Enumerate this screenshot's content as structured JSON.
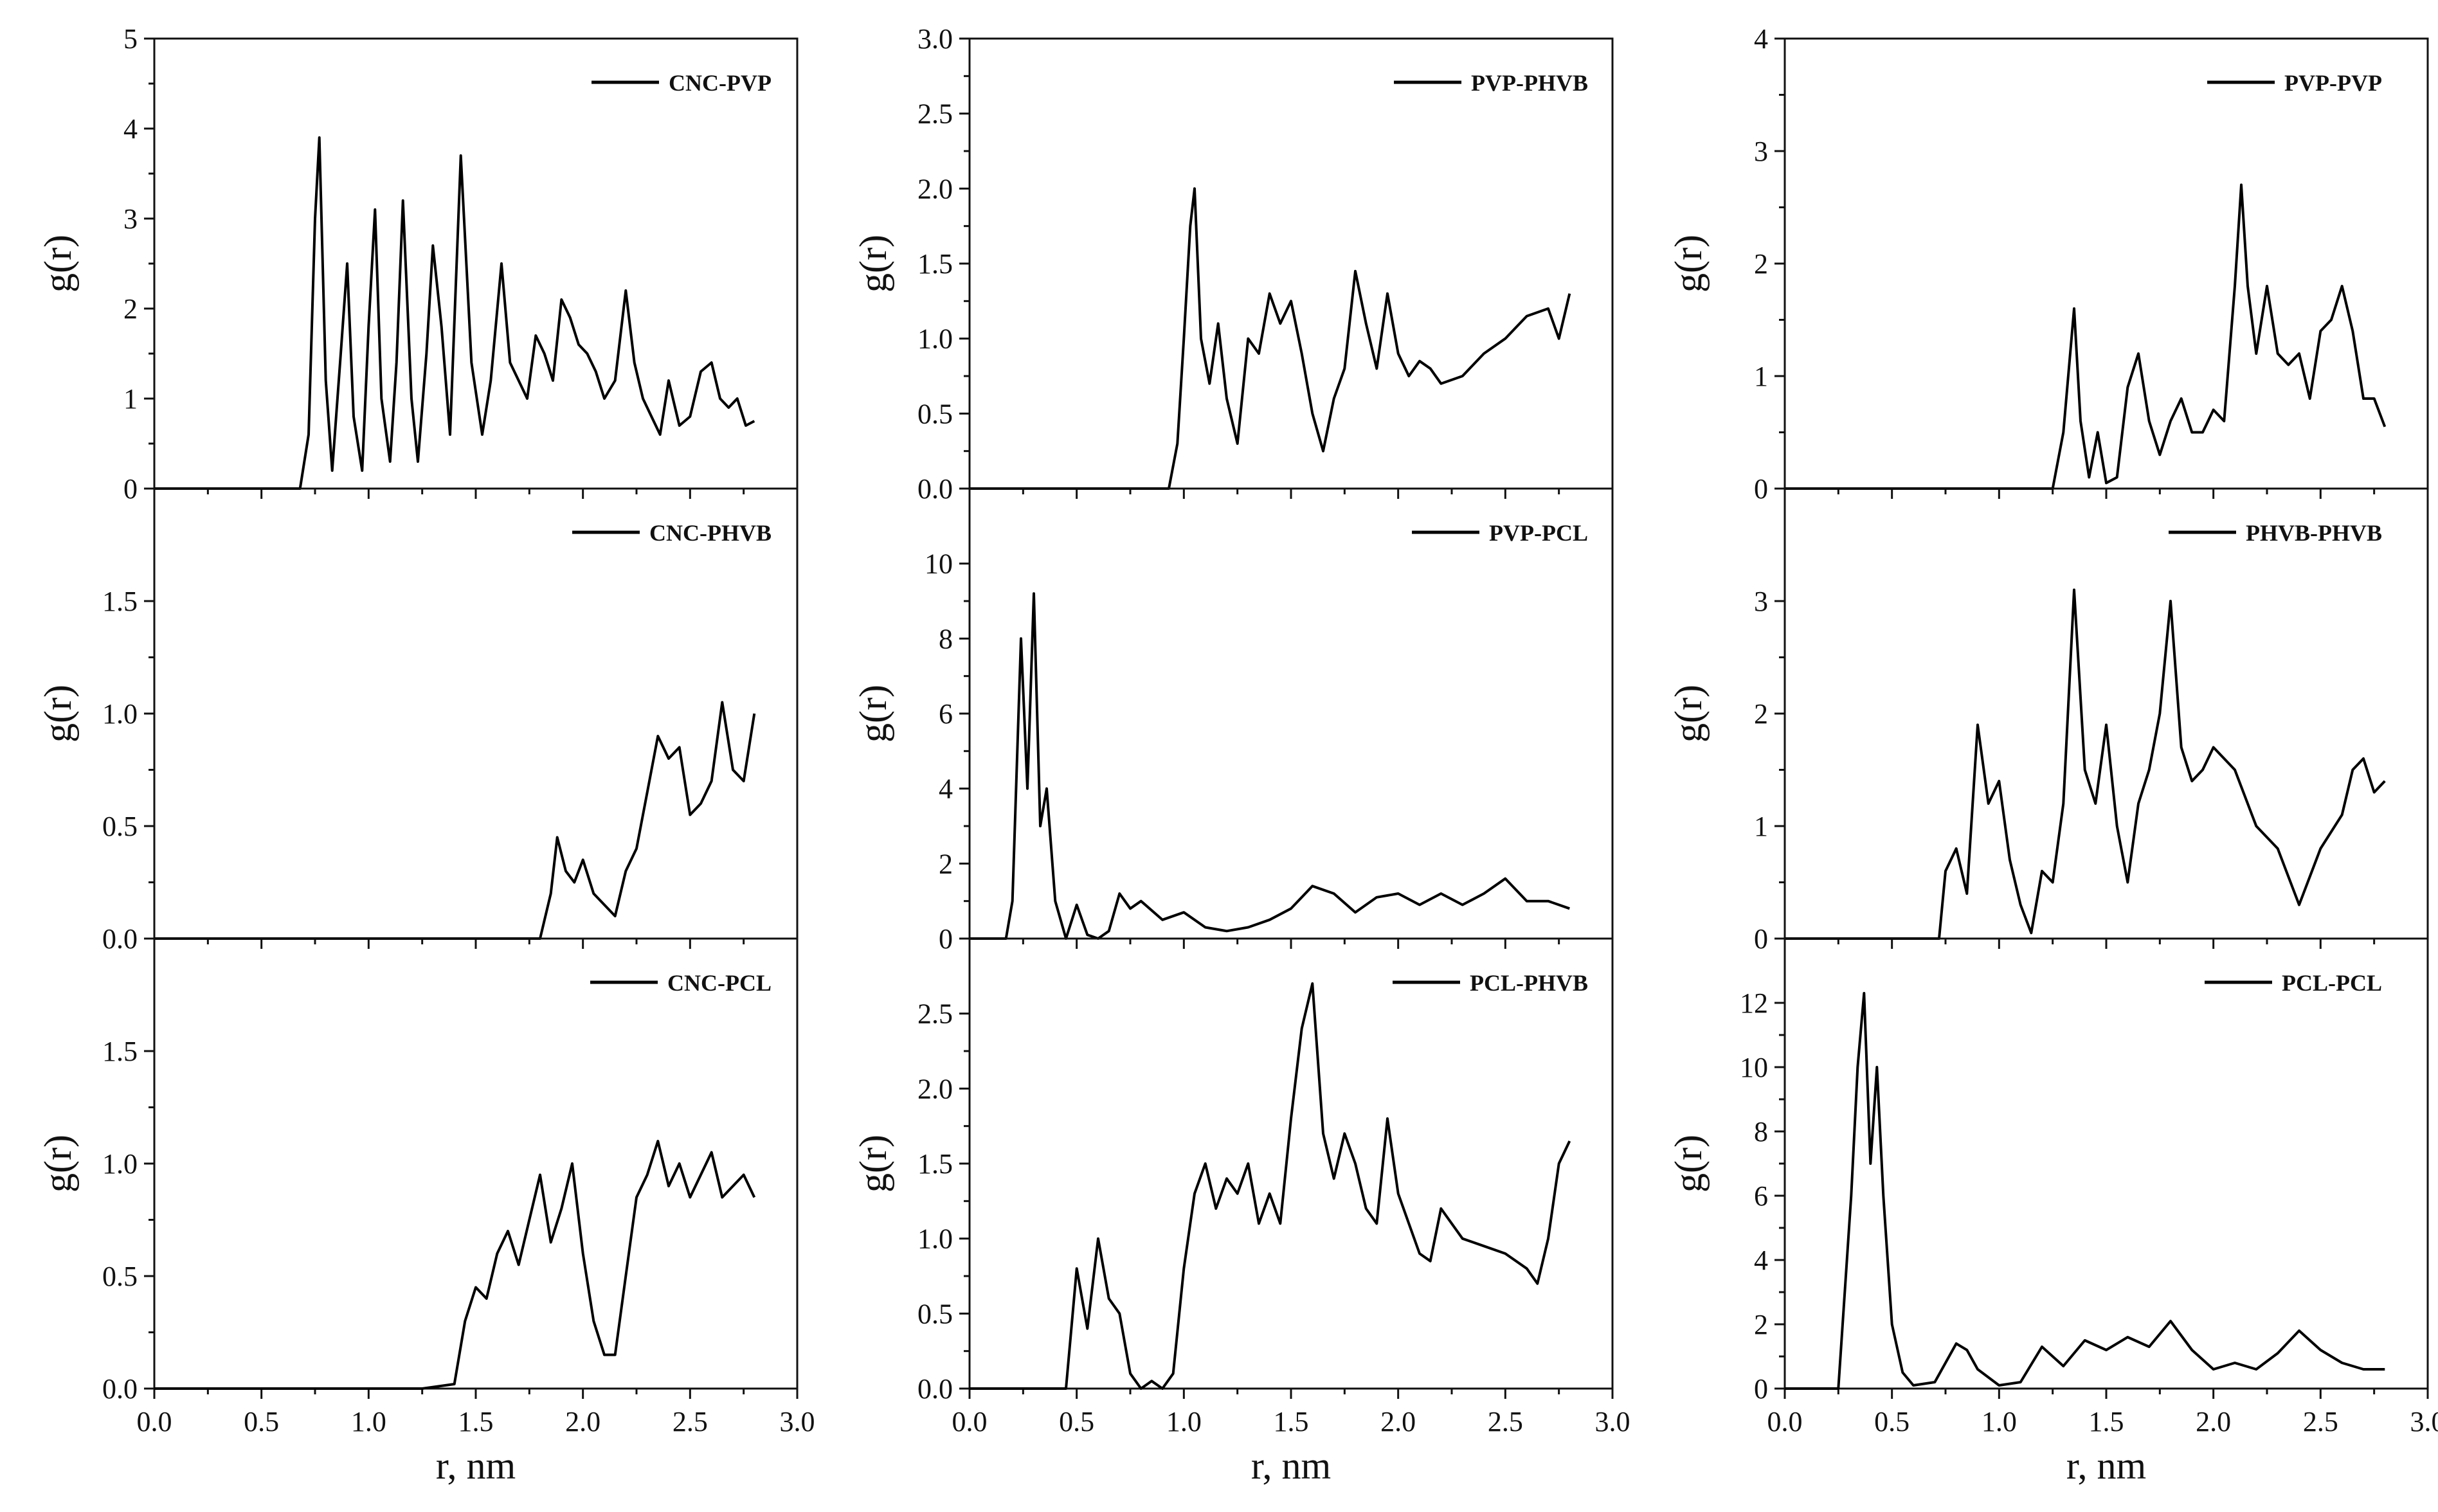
{
  "figure": {
    "xlabel": "r, nm",
    "ylabel": "g(r)",
    "x_ticks": [
      "0.0",
      "0.5",
      "1.0",
      "1.5",
      "2.0",
      "2.5",
      "3.0"
    ]
  },
  "chart_data": [
    {
      "type": "line",
      "legend": "CNC-PVP",
      "column": 0,
      "row": 0,
      "xlim": [
        0,
        3
      ],
      "ylim": [
        0,
        5
      ],
      "y_ticks": [
        "0",
        "1",
        "2",
        "3",
        "4",
        "5"
      ],
      "x": [
        0.0,
        0.68,
        0.72,
        0.75,
        0.77,
        0.8,
        0.83,
        0.87,
        0.9,
        0.93,
        0.97,
        1.0,
        1.03,
        1.06,
        1.1,
        1.13,
        1.16,
        1.2,
        1.23,
        1.27,
        1.3,
        1.34,
        1.38,
        1.43,
        1.48,
        1.53,
        1.57,
        1.62,
        1.66,
        1.7,
        1.74,
        1.78,
        1.82,
        1.86,
        1.9,
        1.94,
        1.98,
        2.02,
        2.06,
        2.1,
        2.15,
        2.2,
        2.24,
        2.28,
        2.32,
        2.36,
        2.4,
        2.45,
        2.5,
        2.55,
        2.6,
        2.64,
        2.68,
        2.72,
        2.76,
        2.8
      ],
      "values": [
        0.0,
        0.0,
        0.6,
        3.0,
        3.9,
        1.2,
        0.2,
        1.5,
        2.5,
        0.8,
        0.2,
        1.8,
        3.1,
        1.0,
        0.3,
        1.4,
        3.2,
        1.0,
        0.3,
        1.5,
        2.7,
        1.8,
        0.6,
        3.7,
        1.4,
        0.6,
        1.2,
        2.5,
        1.4,
        1.2,
        1.0,
        1.7,
        1.5,
        1.2,
        2.1,
        1.9,
        1.6,
        1.5,
        1.3,
        1.0,
        1.2,
        2.2,
        1.4,
        1.0,
        0.8,
        0.6,
        1.2,
        0.7,
        0.8,
        1.3,
        1.4,
        1.0,
        0.9,
        1.0,
        0.7,
        0.75
      ]
    },
    {
      "type": "line",
      "legend": "CNC-PHVB",
      "column": 0,
      "row": 1,
      "xlim": [
        0,
        3
      ],
      "ylim": [
        0,
        2
      ],
      "y_ticks": [
        "0.0",
        "0.5",
        "1.0",
        "1.5"
      ],
      "x": [
        0.0,
        1.8,
        1.85,
        1.88,
        1.92,
        1.96,
        2.0,
        2.05,
        2.1,
        2.15,
        2.2,
        2.25,
        2.3,
        2.35,
        2.4,
        2.45,
        2.5,
        2.55,
        2.6,
        2.65,
        2.7,
        2.75,
        2.8
      ],
      "values": [
        0.0,
        0.0,
        0.2,
        0.45,
        0.3,
        0.25,
        0.35,
        0.2,
        0.15,
        0.1,
        0.3,
        0.4,
        0.65,
        0.9,
        0.8,
        0.85,
        0.55,
        0.6,
        0.7,
        1.05,
        0.75,
        0.7,
        1.0
      ]
    },
    {
      "type": "line",
      "legend": "CNC-PCL",
      "column": 0,
      "row": 2,
      "xlim": [
        0,
        3
      ],
      "ylim": [
        0,
        2
      ],
      "y_ticks": [
        "0.0",
        "0.5",
        "1.0",
        "1.5"
      ],
      "x": [
        0.0,
        1.25,
        1.4,
        1.45,
        1.5,
        1.55,
        1.6,
        1.65,
        1.7,
        1.75,
        1.8,
        1.85,
        1.9,
        1.95,
        2.0,
        2.05,
        2.1,
        2.15,
        2.2,
        2.25,
        2.3,
        2.35,
        2.4,
        2.45,
        2.5,
        2.55,
        2.6,
        2.65,
        2.7,
        2.75,
        2.8
      ],
      "values": [
        0.0,
        0.0,
        0.02,
        0.3,
        0.45,
        0.4,
        0.6,
        0.7,
        0.55,
        0.75,
        0.95,
        0.65,
        0.8,
        1.0,
        0.6,
        0.3,
        0.15,
        0.15,
        0.5,
        0.85,
        0.95,
        1.1,
        0.9,
        1.0,
        0.85,
        0.95,
        1.05,
        0.85,
        0.9,
        0.95,
        0.85
      ]
    },
    {
      "type": "line",
      "legend": "PVP-PHVB",
      "column": 1,
      "row": 0,
      "xlim": [
        0,
        3
      ],
      "ylim": [
        0,
        3
      ],
      "y_ticks": [
        "0.0",
        "0.5",
        "1.0",
        "1.5",
        "2.0",
        "2.5",
        "3.0"
      ],
      "x": [
        0.0,
        0.93,
        0.97,
        1.0,
        1.03,
        1.05,
        1.08,
        1.12,
        1.16,
        1.2,
        1.25,
        1.3,
        1.35,
        1.4,
        1.45,
        1.5,
        1.55,
        1.6,
        1.65,
        1.7,
        1.75,
        1.8,
        1.85,
        1.9,
        1.95,
        2.0,
        2.05,
        2.1,
        2.15,
        2.2,
        2.3,
        2.4,
        2.5,
        2.6,
        2.7,
        2.75,
        2.8
      ],
      "values": [
        0.0,
        0.0,
        0.3,
        1.0,
        1.75,
        2.0,
        1.0,
        0.7,
        1.1,
        0.6,
        0.3,
        1.0,
        0.9,
        1.3,
        1.1,
        1.25,
        0.9,
        0.5,
        0.25,
        0.6,
        0.8,
        1.45,
        1.1,
        0.8,
        1.3,
        0.9,
        0.75,
        0.85,
        0.8,
        0.7,
        0.75,
        0.9,
        1.0,
        1.15,
        1.2,
        1.0,
        1.3
      ]
    },
    {
      "type": "line",
      "legend": "PVP-PCL",
      "column": 1,
      "row": 1,
      "xlim": [
        0,
        3
      ],
      "ylim": [
        0,
        12
      ],
      "y_ticks": [
        "0",
        "2",
        "4",
        "6",
        "8",
        "10"
      ],
      "x": [
        0.0,
        0.17,
        0.2,
        0.24,
        0.27,
        0.3,
        0.33,
        0.36,
        0.4,
        0.45,
        0.5,
        0.55,
        0.6,
        0.65,
        0.7,
        0.75,
        0.8,
        0.9,
        1.0,
        1.1,
        1.2,
        1.3,
        1.4,
        1.5,
        1.6,
        1.7,
        1.8,
        1.9,
        2.0,
        2.1,
        2.2,
        2.3,
        2.4,
        2.5,
        2.6,
        2.7,
        2.8
      ],
      "values": [
        0.0,
        0.0,
        1.0,
        8.0,
        4.0,
        9.2,
        3.0,
        4.0,
        1.0,
        0.0,
        0.9,
        0.1,
        0.0,
        0.2,
        1.2,
        0.8,
        1.0,
        0.5,
        0.7,
        0.3,
        0.2,
        0.3,
        0.5,
        0.8,
        1.4,
        1.2,
        0.7,
        1.1,
        1.2,
        0.9,
        1.2,
        0.9,
        1.2,
        1.6,
        1.0,
        1.0,
        0.8
      ]
    },
    {
      "type": "line",
      "legend": "PCL-PHVB",
      "column": 1,
      "row": 2,
      "xlim": [
        0,
        3
      ],
      "ylim": [
        0,
        3
      ],
      "y_ticks": [
        "0.0",
        "0.5",
        "1.0",
        "1.5",
        "2.0",
        "2.5"
      ],
      "x": [
        0.0,
        0.45,
        0.5,
        0.55,
        0.6,
        0.65,
        0.7,
        0.75,
        0.8,
        0.85,
        0.9,
        0.95,
        1.0,
        1.05,
        1.1,
        1.15,
        1.2,
        1.25,
        1.3,
        1.35,
        1.4,
        1.45,
        1.5,
        1.55,
        1.6,
        1.65,
        1.7,
        1.75,
        1.8,
        1.85,
        1.9,
        1.95,
        2.0,
        2.05,
        2.1,
        2.15,
        2.2,
        2.3,
        2.4,
        2.5,
        2.6,
        2.65,
        2.7,
        2.75,
        2.8
      ],
      "values": [
        0.0,
        0.0,
        0.8,
        0.4,
        1.0,
        0.6,
        0.5,
        0.1,
        0.0,
        0.05,
        0.0,
        0.1,
        0.8,
        1.3,
        1.5,
        1.2,
        1.4,
        1.3,
        1.5,
        1.1,
        1.3,
        1.1,
        1.8,
        2.4,
        2.7,
        1.7,
        1.4,
        1.7,
        1.5,
        1.2,
        1.1,
        1.8,
        1.3,
        1.1,
        0.9,
        0.85,
        1.2,
        1.0,
        0.95,
        0.9,
        0.8,
        0.7,
        1.0,
        1.5,
        1.65
      ]
    },
    {
      "type": "line",
      "legend": "PVP-PVP",
      "column": 2,
      "row": 0,
      "xlim": [
        0,
        3
      ],
      "ylim": [
        0,
        4
      ],
      "y_ticks": [
        "0",
        "1",
        "2",
        "3",
        "4"
      ],
      "x": [
        0.0,
        1.25,
        1.3,
        1.35,
        1.38,
        1.42,
        1.46,
        1.5,
        1.55,
        1.6,
        1.65,
        1.7,
        1.75,
        1.8,
        1.85,
        1.9,
        1.95,
        2.0,
        2.05,
        2.1,
        2.13,
        2.16,
        2.2,
        2.25,
        2.3,
        2.35,
        2.4,
        2.45,
        2.5,
        2.55,
        2.6,
        2.65,
        2.7,
        2.75,
        2.8
      ],
      "values": [
        0.0,
        0.0,
        0.5,
        1.6,
        0.6,
        0.1,
        0.5,
        0.05,
        0.1,
        0.9,
        1.2,
        0.6,
        0.3,
        0.6,
        0.8,
        0.5,
        0.5,
        0.7,
        0.6,
        1.8,
        2.7,
        1.8,
        1.2,
        1.8,
        1.2,
        1.1,
        1.2,
        0.8,
        1.4,
        1.5,
        1.8,
        1.4,
        0.8,
        0.8,
        0.55
      ]
    },
    {
      "type": "line",
      "legend": "PHVB-PHVB",
      "column": 2,
      "row": 1,
      "xlim": [
        0,
        3
      ],
      "ylim": [
        0,
        4
      ],
      "y_ticks": [
        "0",
        "1",
        "2",
        "3"
      ],
      "x": [
        0.0,
        0.72,
        0.75,
        0.8,
        0.85,
        0.9,
        0.95,
        1.0,
        1.05,
        1.1,
        1.15,
        1.2,
        1.25,
        1.3,
        1.35,
        1.4,
        1.45,
        1.5,
        1.55,
        1.6,
        1.65,
        1.7,
        1.75,
        1.8,
        1.85,
        1.9,
        1.95,
        2.0,
        2.1,
        2.2,
        2.3,
        2.4,
        2.5,
        2.6,
        2.65,
        2.7,
        2.75,
        2.8
      ],
      "values": [
        0.0,
        0.0,
        0.6,
        0.8,
        0.4,
        1.9,
        1.2,
        1.4,
        0.7,
        0.3,
        0.05,
        0.6,
        0.5,
        1.2,
        3.1,
        1.5,
        1.2,
        1.9,
        1.0,
        0.5,
        1.2,
        1.5,
        2.0,
        3.0,
        1.7,
        1.4,
        1.5,
        1.7,
        1.5,
        1.0,
        0.8,
        0.3,
        0.8,
        1.1,
        1.5,
        1.6,
        1.3,
        1.4
      ]
    },
    {
      "type": "line",
      "legend": "PCL-PCL",
      "column": 2,
      "row": 2,
      "xlim": [
        0,
        3
      ],
      "ylim": [
        0,
        14
      ],
      "y_ticks": [
        "0",
        "2",
        "4",
        "6",
        "8",
        "10",
        "12"
      ],
      "x": [
        0.0,
        0.25,
        0.28,
        0.31,
        0.34,
        0.37,
        0.4,
        0.43,
        0.46,
        0.5,
        0.55,
        0.6,
        0.7,
        0.8,
        0.85,
        0.9,
        1.0,
        1.1,
        1.2,
        1.3,
        1.4,
        1.5,
        1.6,
        1.7,
        1.8,
        1.9,
        2.0,
        2.1,
        2.2,
        2.3,
        2.4,
        2.5,
        2.6,
        2.7,
        2.8
      ],
      "values": [
        0.0,
        0.0,
        3.0,
        6.0,
        10.0,
        12.3,
        7.0,
        10.0,
        6.0,
        2.0,
        0.5,
        0.1,
        0.2,
        1.4,
        1.2,
        0.6,
        0.1,
        0.2,
        1.3,
        0.7,
        1.5,
        1.2,
        1.6,
        1.3,
        2.1,
        1.2,
        0.6,
        0.8,
        0.6,
        1.1,
        1.8,
        1.2,
        0.8,
        0.6,
        0.6
      ]
    }
  ]
}
